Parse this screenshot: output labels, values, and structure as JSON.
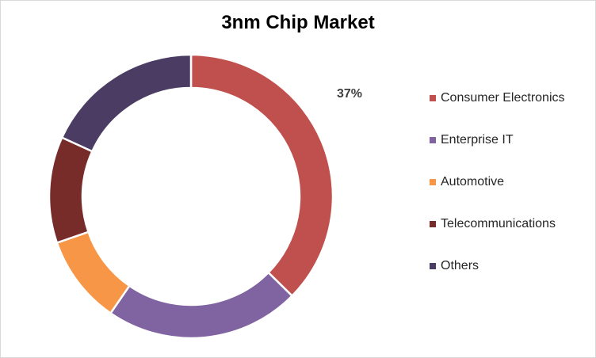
{
  "chart_data": {
    "type": "pie",
    "title": "3nm Chip Market",
    "donut": true,
    "legend_position": "right",
    "categories": [
      "Consumer Electronics",
      "Enterprise IT",
      "Automotive",
      "Telecommunications",
      "Others"
    ],
    "values": [
      37,
      22,
      10,
      12,
      18
    ],
    "data_labels": [
      "37%",
      "",
      "",
      "",
      ""
    ],
    "colors": [
      "#C0504D",
      "#8064A2",
      "#F79646",
      "#772C2A",
      "#4A3C63"
    ]
  }
}
